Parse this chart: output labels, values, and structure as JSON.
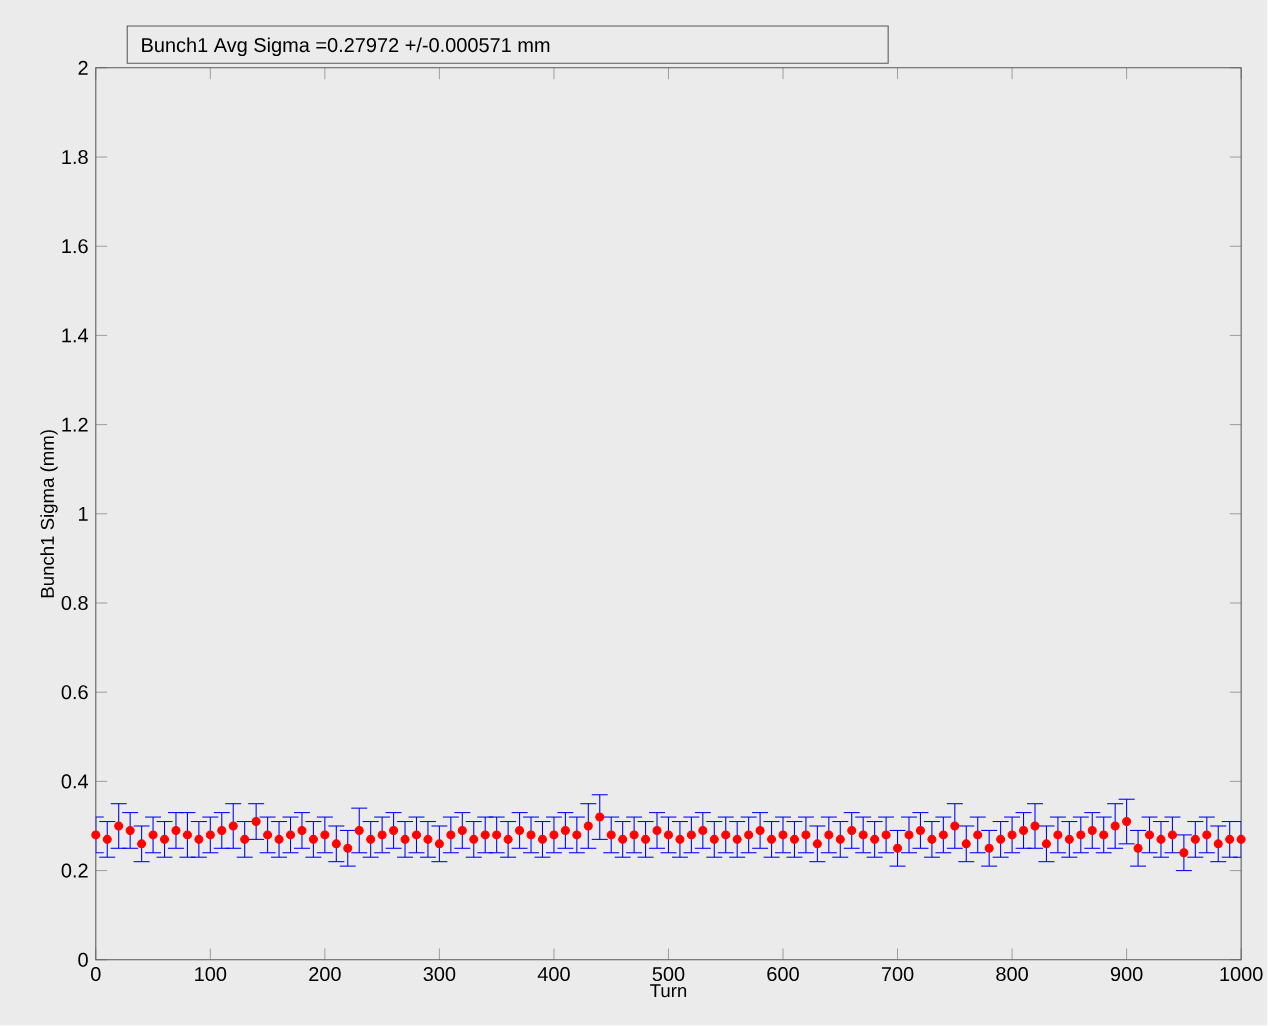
{
  "chart_data": {
    "type": "scatter",
    "xlabel": "Turn",
    "ylabel": "Bunch1 Sigma (mm)",
    "annotations": [
      "Bunch1 Avg Sigma =0.27972 +/-0.000571 mm"
    ],
    "xlim": [
      0,
      1000
    ],
    "ylim": [
      0,
      2
    ],
    "xticks": [
      0,
      100,
      200,
      300,
      400,
      500,
      600,
      700,
      800,
      900,
      1000
    ],
    "yticks": [
      0,
      0.2,
      0.4,
      0.6,
      0.8,
      1,
      1.2,
      1.4,
      1.6,
      1.8,
      2
    ],
    "grid": false,
    "x": [
      0,
      10,
      20,
      30,
      40,
      50,
      60,
      70,
      80,
      90,
      100,
      110,
      120,
      130,
      140,
      150,
      160,
      170,
      180,
      190,
      200,
      210,
      220,
      230,
      240,
      250,
      260,
      270,
      280,
      290,
      300,
      310,
      320,
      330,
      340,
      350,
      360,
      370,
      380,
      390,
      400,
      410,
      420,
      430,
      440,
      450,
      460,
      470,
      480,
      490,
      500,
      510,
      520,
      530,
      540,
      550,
      560,
      570,
      580,
      590,
      600,
      610,
      620,
      630,
      640,
      650,
      660,
      670,
      680,
      690,
      700,
      710,
      720,
      730,
      740,
      750,
      760,
      770,
      780,
      790,
      800,
      810,
      820,
      830,
      840,
      850,
      860,
      870,
      880,
      890,
      900,
      910,
      920,
      930,
      940,
      950,
      960,
      970,
      980,
      990,
      1000
    ],
    "series": [
      {
        "color": "#ff0000",
        "values": [
          0.28,
          0.27,
          0.3,
          0.29,
          0.26,
          0.28,
          0.27,
          0.29,
          0.28,
          0.27,
          0.28,
          0.29,
          0.3,
          0.27,
          0.31,
          0.28,
          0.27,
          0.28,
          0.29,
          0.27,
          0.28,
          0.26,
          0.25,
          0.29,
          0.27,
          0.28,
          0.29,
          0.27,
          0.28,
          0.27,
          0.26,
          0.28,
          0.29,
          0.27,
          0.28,
          0.28,
          0.27,
          0.29,
          0.28,
          0.27,
          0.28,
          0.29,
          0.28,
          0.3,
          0.32,
          0.28,
          0.27,
          0.28,
          0.27,
          0.29,
          0.28,
          0.27,
          0.28,
          0.29,
          0.27,
          0.28,
          0.27,
          0.28,
          0.29,
          0.27,
          0.28,
          0.27,
          0.28,
          0.26,
          0.28,
          0.27,
          0.29,
          0.28,
          0.27,
          0.28,
          0.25,
          0.28,
          0.29,
          0.27,
          0.28,
          0.3,
          0.26,
          0.28,
          0.25,
          0.27,
          0.28,
          0.29,
          0.3,
          0.26,
          0.28,
          0.27,
          0.28,
          0.29,
          0.28,
          0.3,
          0.31,
          0.25,
          0.28,
          0.27,
          0.28,
          0.24,
          0.27,
          0.28,
          0.26,
          0.27,
          0.27
        ],
        "errors": [
          0.04,
          0.04,
          0.05,
          0.04,
          0.04,
          0.04,
          0.04,
          0.04,
          0.05,
          0.04,
          0.04,
          0.04,
          0.05,
          0.04,
          0.04,
          0.04,
          0.04,
          0.04,
          0.04,
          0.04,
          0.04,
          0.04,
          0.04,
          0.05,
          0.04,
          0.04,
          0.04,
          0.04,
          0.04,
          0.04,
          0.04,
          0.04,
          0.04,
          0.04,
          0.04,
          0.04,
          0.04,
          0.04,
          0.04,
          0.04,
          0.04,
          0.04,
          0.04,
          0.05,
          0.05,
          0.04,
          0.04,
          0.04,
          0.04,
          0.04,
          0.04,
          0.04,
          0.04,
          0.04,
          0.04,
          0.04,
          0.04,
          0.04,
          0.04,
          0.04,
          0.04,
          0.04,
          0.04,
          0.04,
          0.04,
          0.04,
          0.04,
          0.04,
          0.04,
          0.04,
          0.04,
          0.04,
          0.04,
          0.04,
          0.04,
          0.05,
          0.04,
          0.04,
          0.04,
          0.04,
          0.04,
          0.04,
          0.05,
          0.04,
          0.04,
          0.04,
          0.04,
          0.04,
          0.04,
          0.05,
          0.05,
          0.04,
          0.04,
          0.04,
          0.04,
          0.04,
          0.04,
          0.04,
          0.04,
          0.04,
          0.04
        ]
      }
    ]
  }
}
